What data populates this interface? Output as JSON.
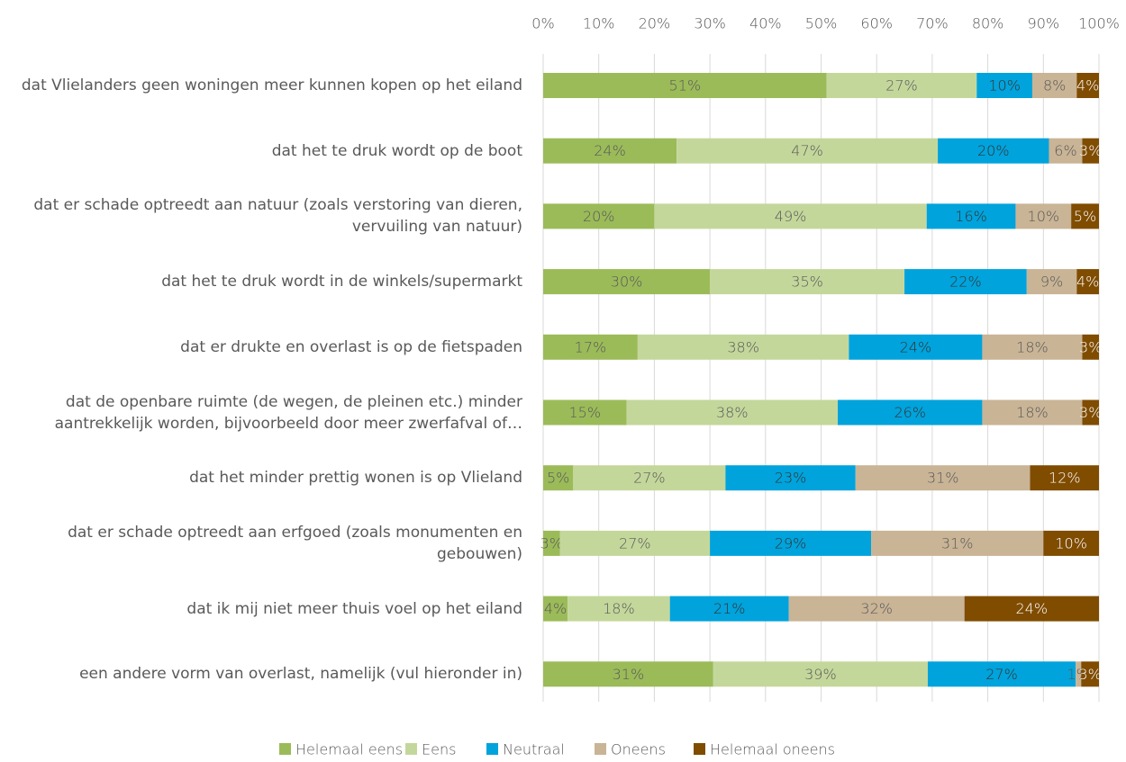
{
  "chart_data": {
    "type": "stacked_bar_horizontal",
    "categories": [
      "dat Vlielanders geen woningen meer kunnen kopen op het eiland",
      "dat het te druk wordt op de boot",
      "dat er schade optreedt aan natuur (zoals verstoring van dieren, vervuiling van natuur)",
      "dat het te druk wordt in de winkels/supermarkt",
      "dat er drukte en overlast is op de fietspaden",
      "dat de openbare ruimte (de wegen, de pleinen etc.) minder aantrekkelijk worden, bijvoorbeeld door meer zwerfafval of…",
      "dat het minder prettig wonen is op Vlieland",
      "dat er schade optreedt aan erfgoed (zoals monumenten en gebouwen)",
      "dat ik mij niet meer thuis voel op het eiland",
      "een andere vorm van overlast, namelijk (vul hieronder in)"
    ],
    "series": [
      {
        "name": "Helemaal eens",
        "color": "#9bbb59",
        "values": [
          51,
          24,
          20,
          30,
          17,
          15,
          5.4,
          3,
          4.4,
          30.6
        ],
        "value_labels": [
          "51%",
          "24%",
          "20%",
          "30%",
          "17%",
          "15%",
          "5%",
          "3%",
          "4%",
          "31%"
        ]
      },
      {
        "name": "Eens",
        "color": "#c4d79b",
        "values": [
          27,
          47,
          49,
          35,
          38,
          38,
          27.4,
          27,
          18.4,
          38.6
        ],
        "value_labels": [
          "27%",
          "47%",
          "49%",
          "35%",
          "38%",
          "38%",
          "27%",
          "27%",
          "18%",
          "39%"
        ]
      },
      {
        "name": "Neutraal",
        "color": "#00a3dc",
        "values": [
          10,
          20,
          16,
          22,
          24,
          26,
          23.4,
          29,
          21.4,
          26.6
        ],
        "value_labels": [
          "10%",
          "20%",
          "16%",
          "22%",
          "24%",
          "26%",
          "23%",
          "29%",
          "21%",
          "27%"
        ]
      },
      {
        "name": "Oneens",
        "color": "#c9b496",
        "values": [
          8,
          6,
          10,
          9,
          18,
          18,
          31.4,
          31,
          31.6,
          1
        ],
        "value_labels": [
          "8%",
          "6%",
          "10%",
          "9%",
          "18%",
          "18%",
          "31%",
          "31%",
          "32%",
          "1%"
        ]
      },
      {
        "name": "Helemaal oneens",
        "color": "#7f4c00",
        "values": [
          4,
          3,
          5,
          4,
          3,
          3,
          12.4,
          10,
          24.2,
          3.2
        ],
        "value_labels": [
          "4%",
          "3%",
          "5%",
          "4%",
          "3%",
          "3%",
          "12%",
          "10%",
          "24%",
          "3%"
        ]
      }
    ],
    "xlim": [
      0,
      100
    ],
    "xticks": [
      {
        "value": 0,
        "label": "0%"
      },
      {
        "value": 10,
        "label": "10%"
      },
      {
        "value": 20,
        "label": "20%"
      },
      {
        "value": 30,
        "label": "30%"
      },
      {
        "value": 40,
        "label": "40%"
      },
      {
        "value": 50,
        "label": "50%"
      },
      {
        "value": 60,
        "label": "60%"
      },
      {
        "value": 70,
        "label": "70%"
      },
      {
        "value": 80,
        "label": "80%"
      },
      {
        "value": 90,
        "label": "90%"
      },
      {
        "value": 100,
        "label": "100%"
      }
    ],
    "grid": true,
    "legend": "bottom"
  }
}
